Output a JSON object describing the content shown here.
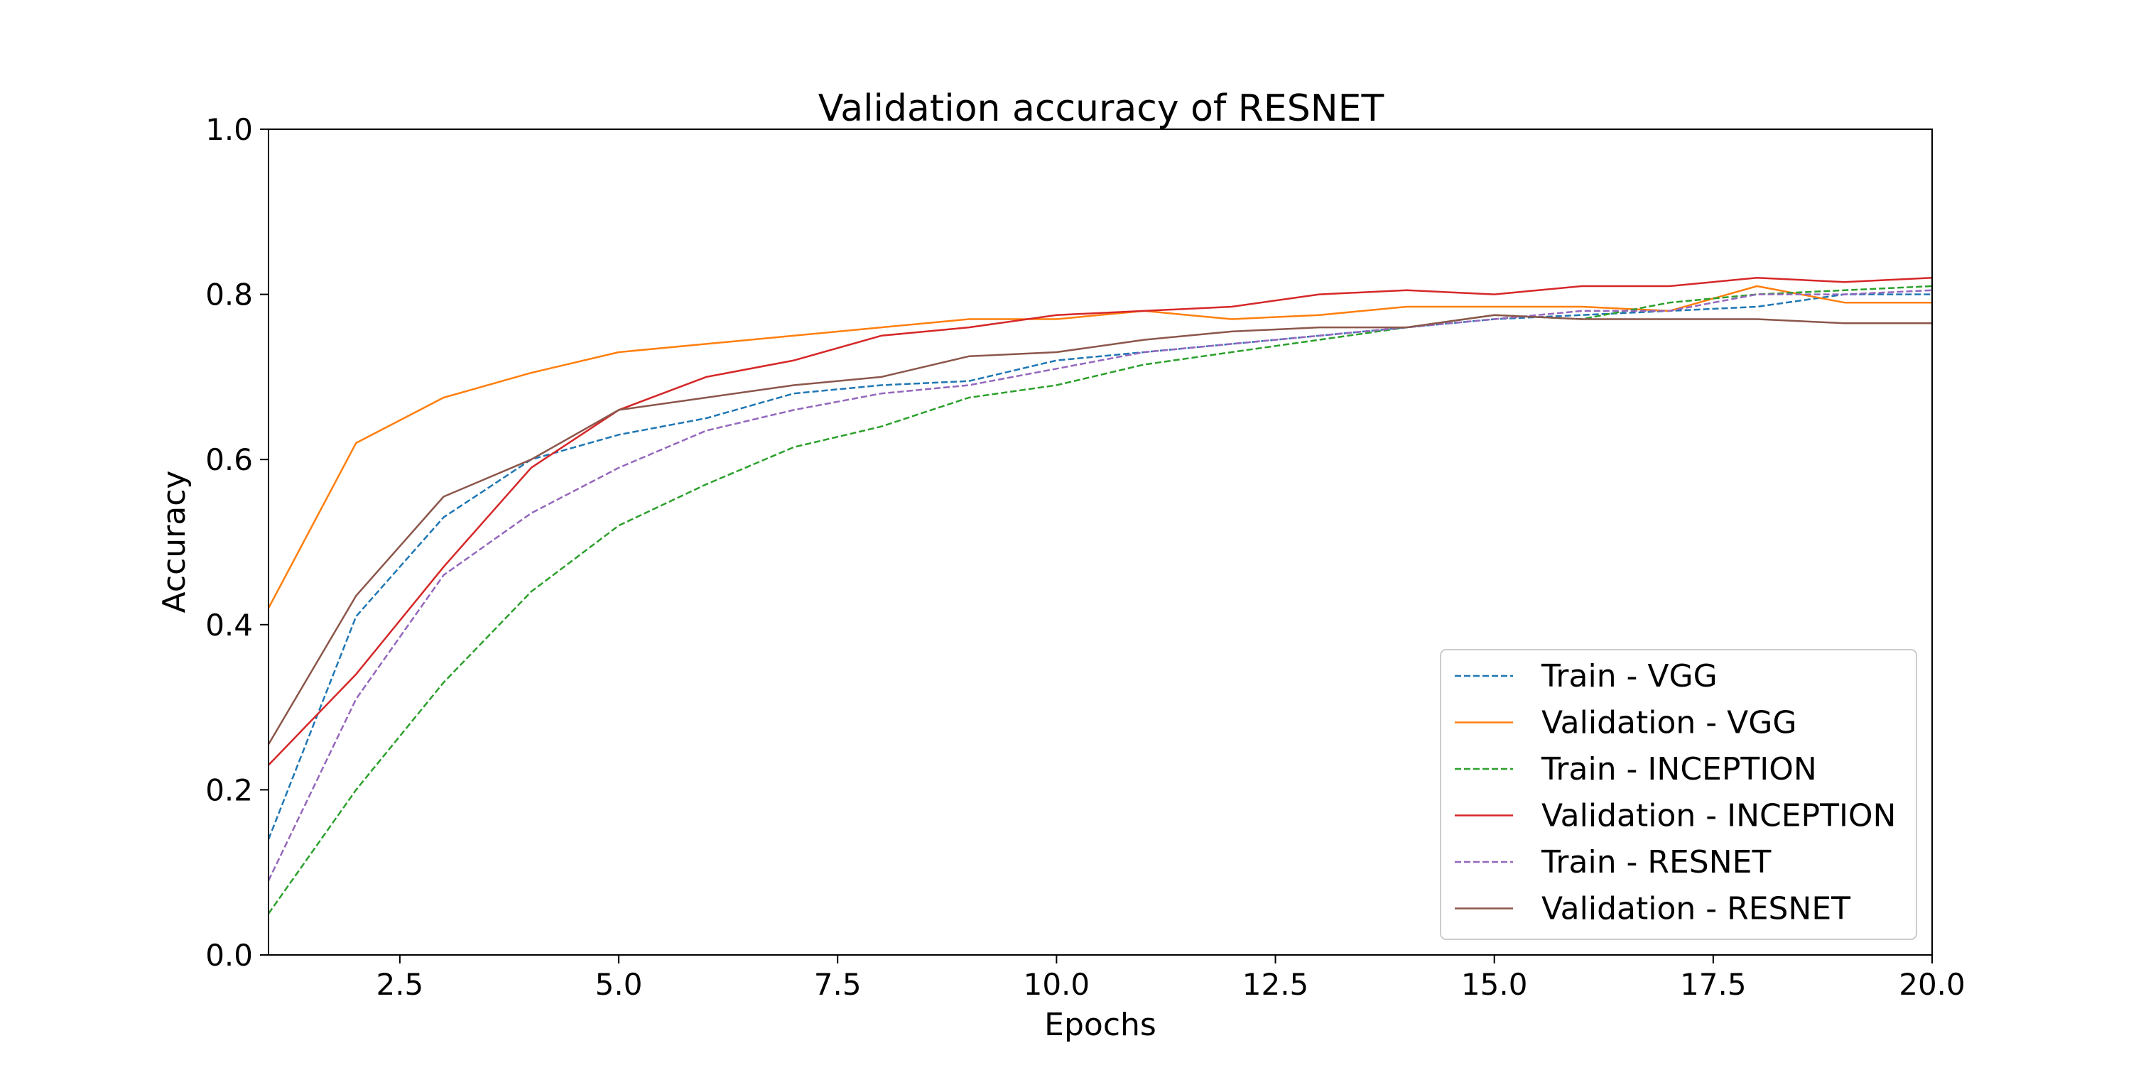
{
  "chart_data": {
    "type": "line",
    "title": "Validation accuracy of RESNET",
    "xlabel": "Epochs",
    "ylabel": "Accuracy",
    "xlim": [
      1,
      20
    ],
    "ylim": [
      0.0,
      1.0
    ],
    "xticks": [
      2.5,
      5.0,
      7.5,
      10.0,
      12.5,
      15.0,
      17.5,
      20.0
    ],
    "xtick_labels": [
      "2.5",
      "5.0",
      "7.5",
      "10.0",
      "12.5",
      "15.0",
      "17.5",
      "20.0"
    ],
    "yticks": [
      0.0,
      0.2,
      0.4,
      0.6,
      0.8,
      1.0
    ],
    "ytick_labels": [
      "0.0",
      "0.2",
      "0.4",
      "0.6",
      "0.8",
      "1.0"
    ],
    "grid": false,
    "legend_position": "lower-right",
    "x": [
      1,
      2,
      3,
      4,
      5,
      6,
      7,
      8,
      9,
      10,
      11,
      12,
      13,
      14,
      15,
      16,
      17,
      18,
      19,
      20
    ],
    "series": [
      {
        "name": "Train - VGG",
        "color": "#1f77b4",
        "dashed": true,
        "values": [
          0.14,
          0.41,
          0.53,
          0.6,
          0.63,
          0.65,
          0.68,
          0.69,
          0.695,
          0.72,
          0.73,
          0.74,
          0.75,
          0.76,
          0.77,
          0.775,
          0.78,
          0.785,
          0.8,
          0.8
        ]
      },
      {
        "name": "Validation - VGG",
        "color": "#ff7f0e",
        "dashed": false,
        "values": [
          0.42,
          0.62,
          0.675,
          0.705,
          0.73,
          0.74,
          0.75,
          0.76,
          0.77,
          0.77,
          0.78,
          0.77,
          0.775,
          0.785,
          0.785,
          0.785,
          0.78,
          0.81,
          0.79,
          0.79
        ]
      },
      {
        "name": "Train - INCEPTION",
        "color": "#2ca02c",
        "dashed": true,
        "values": [
          0.05,
          0.2,
          0.33,
          0.44,
          0.52,
          0.57,
          0.615,
          0.64,
          0.675,
          0.69,
          0.715,
          0.73,
          0.745,
          0.76,
          0.775,
          0.77,
          0.79,
          0.8,
          0.805,
          0.81
        ]
      },
      {
        "name": "Validation - INCEPTION",
        "color": "#d62728",
        "dashed": false,
        "values": [
          0.23,
          0.34,
          0.47,
          0.59,
          0.66,
          0.7,
          0.72,
          0.75,
          0.76,
          0.775,
          0.78,
          0.785,
          0.8,
          0.805,
          0.8,
          0.81,
          0.81,
          0.82,
          0.815,
          0.82
        ]
      },
      {
        "name": "Train - RESNET",
        "color": "#9467bd",
        "dashed": true,
        "values": [
          0.09,
          0.31,
          0.46,
          0.535,
          0.59,
          0.635,
          0.66,
          0.68,
          0.69,
          0.71,
          0.73,
          0.74,
          0.75,
          0.76,
          0.77,
          0.78,
          0.78,
          0.8,
          0.8,
          0.805
        ]
      },
      {
        "name": "Validation - RESNET",
        "color": "#8c564b",
        "dashed": false,
        "values": [
          0.255,
          0.435,
          0.555,
          0.6,
          0.66,
          0.675,
          0.69,
          0.7,
          0.725,
          0.73,
          0.745,
          0.755,
          0.76,
          0.76,
          0.775,
          0.77,
          0.77,
          0.77,
          0.765,
          0.765
        ]
      }
    ]
  }
}
